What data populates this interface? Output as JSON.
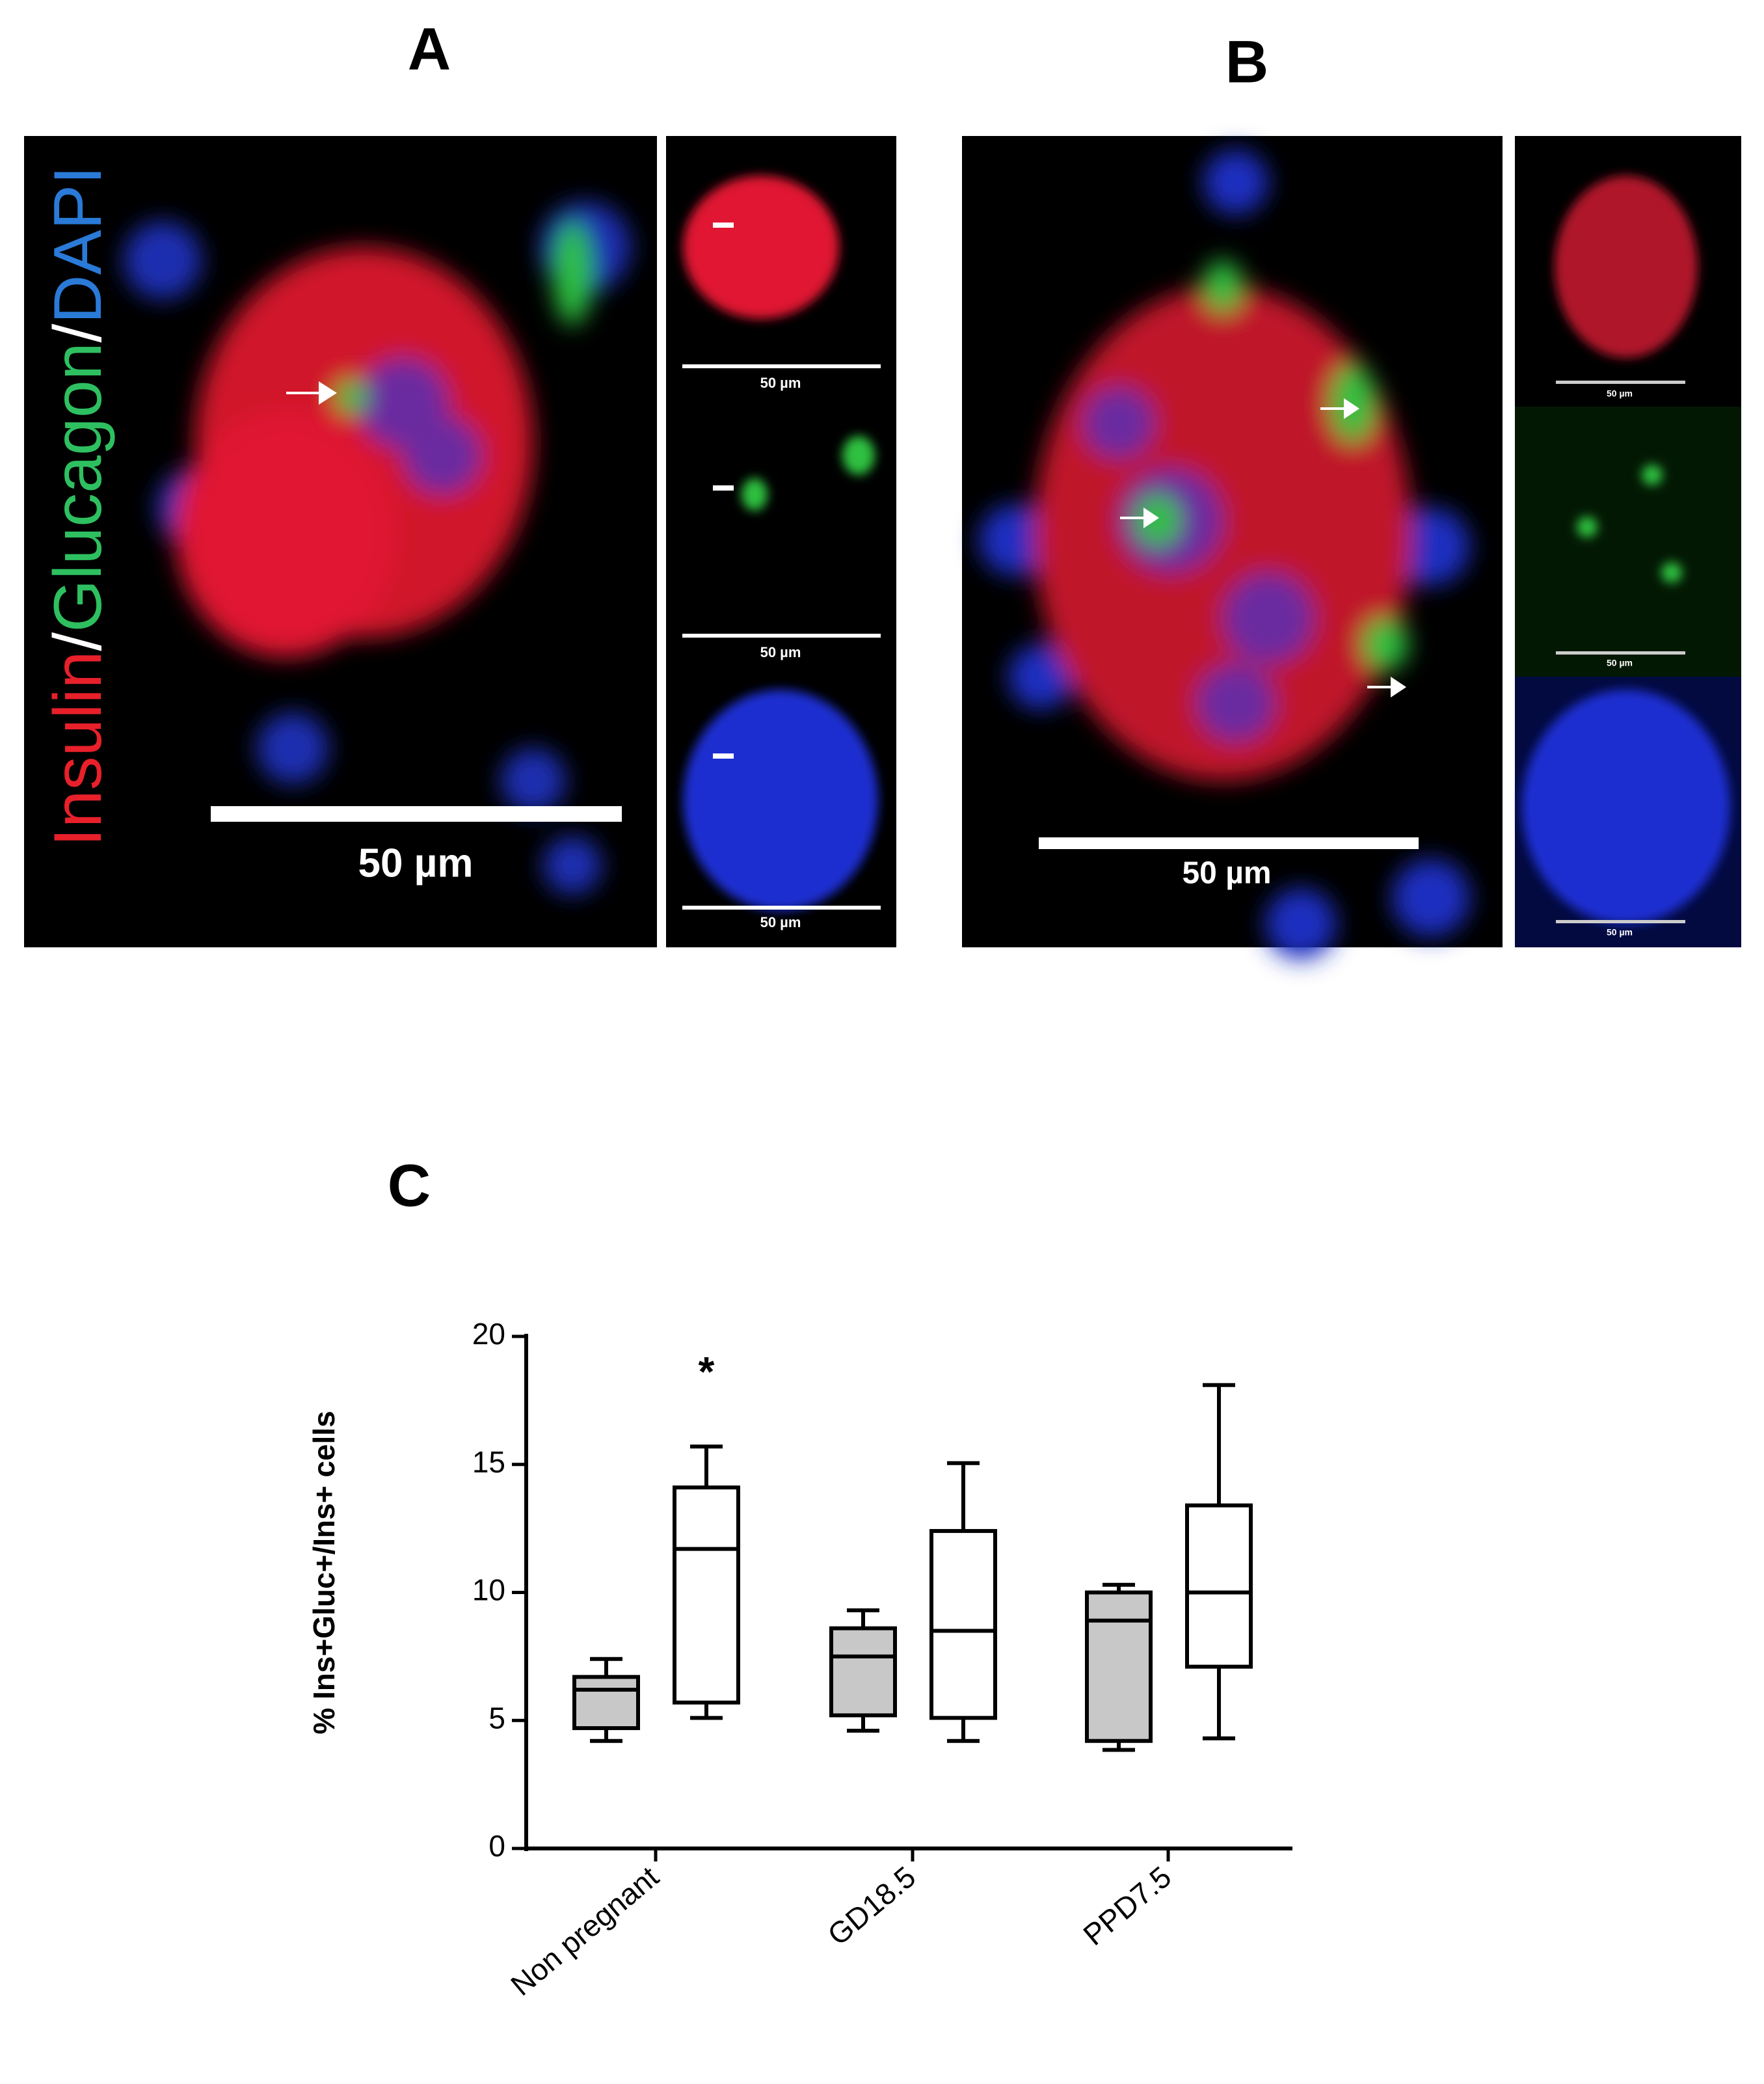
{
  "panels": [
    {
      "label": "A",
      "scale_labels": [
        "50 µm",
        "50 µm",
        "50 µm",
        "50 µm"
      ]
    },
    {
      "label": "B",
      "scale_labels": [
        "50 µm",
        "50 µm",
        "50 µm",
        "50 µm"
      ]
    }
  ],
  "stain_label": {
    "insulin": "Insulin",
    "separator": "/",
    "glucagon": "Glucagon",
    "dapi": "DAPI"
  },
  "chart_data": {
    "type": "box",
    "label": "C",
    "y_label": "% Ins+Gluc+/Ins+ cells",
    "categories": [
      "Non pregnant",
      "GD18.5",
      "PPD7.5"
    ],
    "series": [
      {
        "color": "#c8c8c8",
        "values": [
          {
            "min": 4.2,
            "q1": 4.7,
            "median": 6.2,
            "q3": 6.7,
            "max": 7.4
          },
          {
            "min": 4.6,
            "q1": 5.2,
            "median": 7.5,
            "q3": 8.6,
            "max": 9.3
          },
          {
            "min": 3.85,
            "q1": 4.2,
            "median": 8.9,
            "q3": 10.0,
            "max": 10.3
          }
        ]
      },
      {
        "color": "#ffffff",
        "values": [
          {
            "min": 5.1,
            "q1": 5.7,
            "median": 11.7,
            "q3": 14.1,
            "max": 15.7
          },
          {
            "min": 4.2,
            "q1": 5.1,
            "median": 8.5,
            "q3": 12.4,
            "max": 15.05
          },
          {
            "min": 4.3,
            "q1": 7.1,
            "median": 10.0,
            "q3": 13.4,
            "max": 18.1
          }
        ]
      }
    ],
    "annotations": [
      {
        "text": "*"
      }
    ],
    "ylim": [
      0,
      20
    ],
    "yticks": [
      0,
      5,
      10,
      15,
      20
    ]
  }
}
